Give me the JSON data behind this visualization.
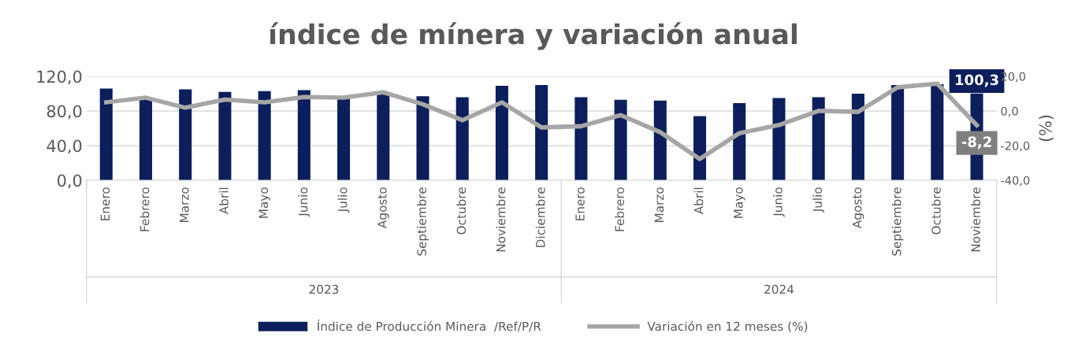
{
  "chart_data": {
    "type": "bar",
    "title": "índice de mínera y variación anual",
    "categories": [
      "Enero",
      "Febrero",
      "Marzo",
      "Abril",
      "Mayo",
      "Junio",
      "Julio",
      "Agosto",
      "Septiembre",
      "Octubre",
      "Noviembre",
      "Diciembre",
      "Enero",
      "Febrero",
      "Marzo",
      "Abril",
      "Mayo",
      "Junio",
      "Julio",
      "Agosto",
      "Septiembre",
      "Octubre",
      "Noviembre"
    ],
    "series": [
      {
        "name": "Índice de Producción Minera  /Ref/P/R",
        "color": "#0c1f5c",
        "values": [
          106,
          95,
          105,
          102,
          103,
          104,
          96,
          101,
          97,
          96,
          109,
          110,
          96,
          93,
          92,
          74,
          89,
          95,
          96,
          100,
          110,
          111,
          100.3
        ],
        "value_labels": [
          null,
          null,
          null,
          null,
          null,
          null,
          null,
          null,
          null,
          null,
          null,
          null,
          null,
          null,
          null,
          null,
          null,
          null,
          null,
          null,
          null,
          null,
          "100,3"
        ]
      },
      {
        "name": "Variación en 12 meses (%)",
        "type": "line",
        "axis": "y2",
        "color": "#a6a6a6",
        "values": [
          5,
          7.7,
          1.9,
          6.6,
          5,
          8.1,
          7.7,
          10.8,
          3.9,
          -5.3,
          5,
          -9.5,
          -8.8,
          -2.4,
          -12.2,
          -27.7,
          -12.8,
          -8.1,
          0.1,
          -0.5,
          13.7,
          15.8,
          -8.2
        ],
        "value_labels": [
          null,
          null,
          null,
          null,
          null,
          null,
          null,
          null,
          null,
          null,
          null,
          null,
          null,
          null,
          null,
          null,
          null,
          null,
          null,
          null,
          null,
          null,
          "-8,2"
        ]
      }
    ],
    "ylim": [
      0,
      120
    ],
    "yticks": [
      {
        "value": 0,
        "label": "0,0"
      },
      {
        "value": 40,
        "label": "40,0"
      },
      {
        "value": 80,
        "label": "80,0"
      },
      {
        "value": 120,
        "label": "120,0"
      }
    ],
    "y2lim": [
      -40,
      20
    ],
    "y2ticks": [
      {
        "value": -40,
        "label": "-40,0"
      },
      {
        "value": -20,
        "label": "-20,0"
      },
      {
        "value": 0,
        "label": "0,0"
      },
      {
        "value": 20,
        "label": "20,0"
      }
    ],
    "y2label": "(%)",
    "annotations": [
      "2023",
      "2024"
    ],
    "grid": "y",
    "legend": "bottom",
    "marker": "none",
    "line_style": "solid"
  }
}
